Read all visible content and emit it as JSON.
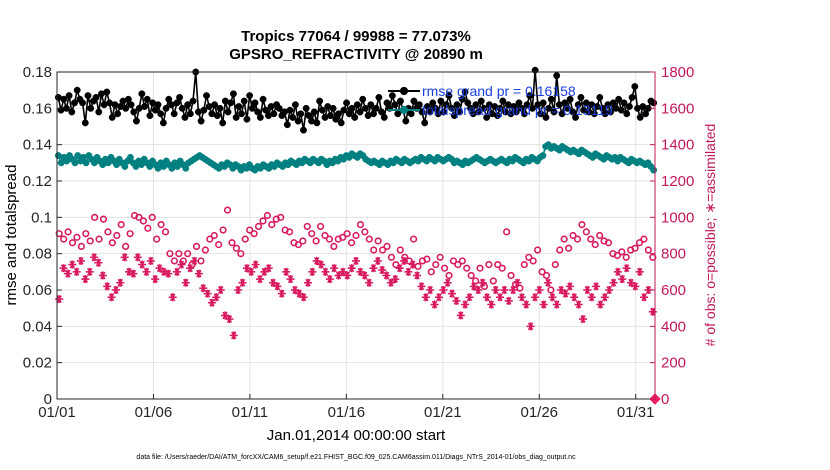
{
  "chart_data": {
    "type": "line",
    "title": "Tropics 77064 / 99988 = 77.073%",
    "subtitle": "GPSRO_REFRACTIVITY @ 20890 m",
    "xlabel": "Jan.01,2014 00:00:00 start",
    "ylabel_left": "rmse and totalspread",
    "ylabel_right": "# of obs: o=possible; ∗=assimilated",
    "footer": "data file: /Users/raeder/DAI/ATM_forcXX/CAM6_setup/f.e21.FHIST_BGC.f09_025.CAM6assim.011/Diags_NTrS_2014-01/obs_diag_output.nc",
    "x_range": [
      1,
      32
    ],
    "x_ticks": [
      {
        "value": 1,
        "label": "01/01"
      },
      {
        "value": 6,
        "label": "01/06"
      },
      {
        "value": 11,
        "label": "01/11"
      },
      {
        "value": 16,
        "label": "01/16"
      },
      {
        "value": 21,
        "label": "01/21"
      },
      {
        "value": 26,
        "label": "01/26"
      },
      {
        "value": 31,
        "label": "01/31"
      }
    ],
    "y_left_range": [
      0,
      0.18
    ],
    "y_left_ticks": [
      "0",
      "0.02",
      "0.04",
      "0.06",
      "0.08",
      "0.1",
      "0.12",
      "0.14",
      "0.16",
      "0.18"
    ],
    "y_right_range": [
      0,
      1800
    ],
    "y_right_ticks": [
      "0",
      "200",
      "400",
      "600",
      "800",
      "1000",
      "1200",
      "1400",
      "1600",
      "1800"
    ],
    "grid": true,
    "legend": [
      {
        "label": "rmse grand pr = 0.16158",
        "color": "#000000"
      },
      {
        "label": "totalspread grand pr = 0.13119",
        "color": "#008080"
      }
    ],
    "colors": {
      "rmse": "#000000",
      "totalspread": "#008080",
      "obs": "#d81b60",
      "legend_text": "#1a3fe0"
    },
    "series": [
      {
        "name": "rmse",
        "axis": "left",
        "marker": "filled-circle",
        "line": true,
        "values": [
          0.166,
          0.159,
          0.165,
          0.16,
          0.167,
          0.158,
          0.163,
          0.17,
          0.165,
          0.163,
          0.152,
          0.167,
          0.16,
          0.164,
          0.166,
          0.158,
          0.168,
          0.162,
          0.169,
          0.163,
          0.155,
          0.162,
          0.157,
          0.161,
          0.164,
          0.16,
          0.165,
          0.162,
          0.158,
          0.153,
          0.16,
          0.168,
          0.161,
          0.165,
          0.156,
          0.163,
          0.159,
          0.162,
          0.157,
          0.152,
          0.16,
          0.165,
          0.162,
          0.157,
          0.163,
          0.166,
          0.16,
          0.155,
          0.162,
          0.157,
          0.164,
          0.18,
          0.158,
          0.153,
          0.159,
          0.167,
          0.161,
          0.157,
          0.162,
          0.156,
          0.16,
          0.152,
          0.164,
          0.158,
          0.163,
          0.168,
          0.155,
          0.161,
          0.157,
          0.164,
          0.154,
          0.167,
          0.16,
          0.163,
          0.158,
          0.155,
          0.165,
          0.159,
          0.156,
          0.161,
          0.157,
          0.162,
          0.16,
          0.156,
          0.158,
          0.151,
          0.159,
          0.155,
          0.162,
          0.153,
          0.157,
          0.148,
          0.16,
          0.156,
          0.153,
          0.158,
          0.152,
          0.164,
          0.159,
          0.155,
          0.161,
          0.156,
          0.16,
          0.154,
          0.157,
          0.152,
          0.159,
          0.163,
          0.157,
          0.16,
          0.155,
          0.162,
          0.158,
          0.165,
          0.16,
          0.156,
          0.162,
          0.157,
          0.16,
          0.166,
          0.158,
          0.155,
          0.163,
          0.16,
          0.167,
          0.162,
          0.157,
          0.164,
          0.159,
          0.153,
          0.16,
          0.157,
          0.164,
          0.16,
          0.162,
          0.158,
          0.152,
          0.161,
          0.158,
          0.163,
          0.16,
          0.157,
          0.164,
          0.158,
          0.162,
          0.167,
          0.16,
          0.156,
          0.162,
          0.158,
          0.165,
          0.169,
          0.163,
          0.16,
          0.157,
          0.162,
          0.158,
          0.164,
          0.16,
          0.155,
          0.162,
          0.157,
          0.161,
          0.156,
          0.16,
          0.164,
          0.158,
          0.162,
          0.157,
          0.161,
          0.158,
          0.163,
          0.16,
          0.157,
          0.162,
          0.167,
          0.16,
          0.181,
          0.162,
          0.157,
          0.163,
          0.155,
          0.16,
          0.165,
          0.158,
          0.178,
          0.162,
          0.157,
          0.163,
          0.16,
          0.165,
          0.158,
          0.155,
          0.162,
          0.166,
          0.159,
          0.163,
          0.158,
          0.162,
          0.157,
          0.161,
          0.166,
          0.16,
          0.157,
          0.162,
          0.158,
          0.163,
          0.16,
          0.165,
          0.159,
          0.163,
          0.157,
          0.161,
          0.166,
          0.172,
          0.16,
          0.155,
          0.161,
          0.157,
          0.16,
          0.164,
          0.163
        ]
      },
      {
        "name": "totalspread",
        "axis": "left",
        "marker": "filled-circle",
        "line": true,
        "values": [
          0.134,
          0.13,
          0.133,
          0.131,
          0.134,
          0.132,
          0.13,
          0.134,
          0.131,
          0.133,
          0.13,
          0.134,
          0.132,
          0.13,
          0.133,
          0.131,
          0.129,
          0.132,
          0.13,
          0.133,
          0.131,
          0.129,
          0.132,
          0.13,
          0.128,
          0.131,
          0.133,
          0.13,
          0.128,
          0.131,
          0.129,
          0.132,
          0.13,
          0.128,
          0.131,
          0.129,
          0.127,
          0.13,
          0.128,
          0.131,
          0.129,
          0.127,
          0.13,
          0.128,
          0.131,
          0.129,
          0.127,
          0.13,
          0.131,
          0.132,
          0.133,
          0.134,
          0.133,
          0.132,
          0.131,
          0.13,
          0.129,
          0.128,
          0.127,
          0.129,
          0.128,
          0.13,
          0.129,
          0.127,
          0.129,
          0.128,
          0.126,
          0.128,
          0.127,
          0.129,
          0.127,
          0.126,
          0.128,
          0.127,
          0.129,
          0.128,
          0.127,
          0.129,
          0.128,
          0.13,
          0.129,
          0.128,
          0.13,
          0.129,
          0.131,
          0.13,
          0.129,
          0.131,
          0.13,
          0.132,
          0.131,
          0.13,
          0.132,
          0.131,
          0.13,
          0.132,
          0.131,
          0.129,
          0.131,
          0.13,
          0.132,
          0.131,
          0.133,
          0.132,
          0.134,
          0.133,
          0.135,
          0.134,
          0.133,
          0.135,
          0.134,
          0.132,
          0.131,
          0.13,
          0.131,
          0.13,
          0.129,
          0.131,
          0.13,
          0.129,
          0.131,
          0.13,
          0.132,
          0.131,
          0.13,
          0.132,
          0.131,
          0.13,
          0.131,
          0.132,
          0.131,
          0.133,
          0.132,
          0.131,
          0.133,
          0.132,
          0.131,
          0.133,
          0.132,
          0.131,
          0.132,
          0.133,
          0.132,
          0.13,
          0.131,
          0.13,
          0.129,
          0.131,
          0.13,
          0.131,
          0.132,
          0.133,
          0.132,
          0.131,
          0.13,
          0.131,
          0.132,
          0.131,
          0.13,
          0.131,
          0.132,
          0.131,
          0.13,
          0.132,
          0.131,
          0.133,
          0.132,
          0.131,
          0.13,
          0.132,
          0.131,
          0.133,
          0.132,
          0.131,
          0.133,
          0.134,
          0.139,
          0.14,
          0.138,
          0.139,
          0.138,
          0.137,
          0.139,
          0.138,
          0.137,
          0.136,
          0.137,
          0.136,
          0.135,
          0.137,
          0.136,
          0.135,
          0.134,
          0.133,
          0.135,
          0.134,
          0.133,
          0.132,
          0.134,
          0.133,
          0.132,
          0.133,
          0.131,
          0.133,
          0.132,
          0.131,
          0.13,
          0.132,
          0.131,
          0.13,
          0.131,
          0.13,
          0.129,
          0.13,
          0.128,
          0.126
        ]
      },
      {
        "name": "obs possible",
        "axis": "right",
        "marker": "open-circle",
        "line": false,
        "values": [
          910,
          880,
          920,
          860,
          890,
          840,
          910,
          870,
          1000,
          880,
          990,
          920,
          860,
          900,
          960,
          840,
          910,
          1010,
          1000,
          980,
          940,
          1000,
          880,
          960,
          920,
          800,
          760,
          800,
          760,
          800,
          740,
          840,
          760,
          820,
          880,
          900,
          850,
          930,
          1040,
          860,
          830,
          800,
          880,
          930,
          910,
          950,
          980,
          1010,
          960,
          990,
          1000,
          930,
          920,
          860,
          850,
          870,
          950,
          910,
          870,
          950,
          900,
          880,
          840,
          880,
          890,
          910,
          860,
          900,
          960,
          920,
          880,
          820,
          870,
          820,
          840,
          780,
          740,
          820,
          780,
          760,
          880,
          730,
          760,
          770,
          700,
          740,
          780,
          720,
          680,
          760,
          740,
          760,
          720,
          680,
          650,
          720,
          620,
          740,
          650,
          740,
          720,
          920,
          680,
          630,
          610,
          740,
          780,
          760,
          820,
          700,
          680,
          600,
          740,
          820,
          880,
          830,
          900,
          880,
          960,
          920,
          880,
          850,
          900,
          870,
          860,
          800,
          790,
          810,
          780,
          820,
          830,
          860,
          880,
          820,
          780
        ]
      },
      {
        "name": "obs assimilated",
        "axis": "right",
        "marker": "asterisk",
        "line": false,
        "values": [
          550,
          720,
          690,
          740,
          700,
          760,
          660,
          700,
          780,
          750,
          680,
          620,
          560,
          600,
          640,
          780,
          700,
          690,
          780,
          740,
          700,
          760,
          660,
          720,
          700,
          690,
          560,
          700,
          740,
          640,
          720,
          760,
          690,
          610,
          580,
          530,
          560,
          600,
          460,
          440,
          350,
          600,
          640,
          720,
          700,
          740,
          660,
          700,
          720,
          640,
          620,
          580,
          700,
          660,
          600,
          580,
          560,
          640,
          700,
          760,
          740,
          700,
          660,
          720,
          680,
          700,
          680,
          720,
          760,
          700,
          680,
          640,
          720,
          760,
          710,
          680,
          640,
          660,
          720,
          760,
          700,
          740,
          680,
          620,
          560,
          600,
          520,
          560,
          600,
          640,
          580,
          540,
          460,
          520,
          560,
          620,
          600,
          640,
          560,
          520,
          600,
          560,
          600,
          540,
          600,
          640,
          560,
          520,
          400,
          560,
          600,
          520,
          640,
          560,
          520,
          600,
          580,
          620,
          560,
          520,
          440,
          600,
          560,
          620,
          520,
          560,
          600,
          640,
          700,
          660,
          720,
          640,
          620,
          700,
          560,
          600,
          480
        ]
      }
    ]
  }
}
